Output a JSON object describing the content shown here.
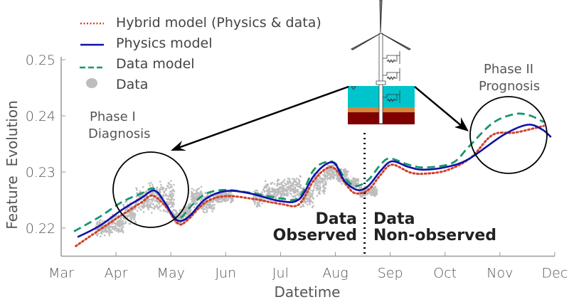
{
  "chart_data": {
    "type": "line",
    "title": "",
    "xlabel": "Datetime",
    "ylabel": "Feature  Evolution",
    "x_ticks": [
      "Mar",
      "Apr",
      "May",
      "Jun",
      "Jul",
      "Aug",
      "Sep",
      "Oct",
      "Nov",
      "Dec"
    ],
    "y_ticks": [
      "0.22",
      "0.23",
      "0.24",
      "0.25"
    ],
    "ylim": [
      0.215,
      0.2505
    ],
    "xlim": [
      "Mar 1",
      "Dec 1"
    ],
    "grid": false,
    "legend_position": "top-left",
    "series": [
      {
        "name": "Hybrid model (Physics & data)",
        "style": "dotted",
        "color": "#d0402a",
        "points": [
          [
            "Mar 9",
            0.2168
          ],
          [
            "Mar 22",
            0.2197
          ],
          [
            "Apr 4",
            0.2223
          ],
          [
            "Apr 15",
            0.2246
          ],
          [
            "Apr 21",
            0.2258
          ],
          [
            "Apr 28",
            0.2239
          ],
          [
            "May 5",
            0.2208
          ],
          [
            "May 10",
            0.2214
          ],
          [
            "May 20",
            0.2246
          ],
          [
            "Jun 1",
            0.2257
          ],
          [
            "Jun 16",
            0.2252
          ],
          [
            "Jul 1",
            0.2243
          ],
          [
            "Jul 11",
            0.2242
          ],
          [
            "Jul 19",
            0.2284
          ],
          [
            "Jul 26",
            0.2306
          ],
          [
            "Aug 1",
            0.2305
          ],
          [
            "Aug 7",
            0.2277
          ],
          [
            "Aug 12",
            0.2262
          ],
          [
            "Aug 19",
            0.2268
          ],
          [
            "Aug 26",
            0.2296
          ],
          [
            "Sep 2",
            0.2313
          ],
          [
            "Sep 12",
            0.2299
          ],
          [
            "Sep 20",
            0.2297
          ],
          [
            "Oct 2",
            0.2303
          ],
          [
            "Oct 15",
            0.2325
          ],
          [
            "Oct 27",
            0.2366
          ],
          [
            "Nov 9",
            0.237
          ],
          [
            "Nov 20",
            0.2378
          ],
          [
            "Nov 25",
            0.2382
          ]
        ]
      },
      {
        "name": "Physics model",
        "style": "solid",
        "color": "#1010a8",
        "points": [
          [
            "Mar 10",
            0.2184
          ],
          [
            "Mar 22",
            0.2204
          ],
          [
            "Apr 4",
            0.2232
          ],
          [
            "Apr 15",
            0.2254
          ],
          [
            "Apr 22",
            0.2267
          ],
          [
            "Apr 28",
            0.2244
          ],
          [
            "May 3",
            0.2218
          ],
          [
            "May 7",
            0.2213
          ],
          [
            "May 12",
            0.2224
          ],
          [
            "May 20",
            0.2252
          ],
          [
            "Jun 1",
            0.2266
          ],
          [
            "Jun 14",
            0.2262
          ],
          [
            "Jul 1",
            0.2248
          ],
          [
            "Jul 11",
            0.2251
          ],
          [
            "Jul 19",
            0.2292
          ],
          [
            "Jul 26",
            0.2314
          ],
          [
            "Aug 1",
            0.2314
          ],
          [
            "Aug 6",
            0.2284
          ],
          [
            "Aug 13",
            0.2268
          ],
          [
            "Aug 19",
            0.2275
          ],
          [
            "Aug 26",
            0.2303
          ],
          [
            "Sep 2",
            0.2319
          ],
          [
            "Sep 11",
            0.2309
          ],
          [
            "Sep 19",
            0.2304
          ],
          [
            "Oct 2",
            0.2309
          ],
          [
            "Oct 14",
            0.2323
          ],
          [
            "Nov 3",
            0.2366
          ],
          [
            "Nov 16",
            0.2384
          ],
          [
            "Nov 24",
            0.2376
          ],
          [
            "Nov 29",
            0.2362
          ]
        ]
      },
      {
        "name": "Data model",
        "style": "dashed",
        "color": "#1a9670",
        "points": [
          [
            "Mar 8",
            0.2194
          ],
          [
            "Mar 22",
            0.222
          ],
          [
            "Apr 4",
            0.2246
          ],
          [
            "Apr 15",
            0.2262
          ],
          [
            "Apr 22",
            0.227
          ],
          [
            "Apr 28",
            0.2242
          ],
          [
            "May 3",
            0.222
          ],
          [
            "May 7",
            0.222
          ],
          [
            "May 12",
            0.2239
          ],
          [
            "May 20",
            0.2261
          ],
          [
            "Jun 1",
            0.2268
          ],
          [
            "Jun 16",
            0.2262
          ],
          [
            "Jul 1",
            0.2253
          ],
          [
            "Jul 11",
            0.2254
          ],
          [
            "Jul 19",
            0.2303
          ],
          [
            "Jul 26",
            0.2318
          ],
          [
            "Aug 1",
            0.2315
          ],
          [
            "Aug 6",
            0.229
          ],
          [
            "Aug 12",
            0.2275
          ],
          [
            "Aug 19",
            0.2286
          ],
          [
            "Aug 26",
            0.2314
          ],
          [
            "Sep 1",
            0.2324
          ],
          [
            "Sep 11",
            0.2313
          ],
          [
            "Sep 20",
            0.2308
          ],
          [
            "Oct 5",
            0.2316
          ],
          [
            "Oct 14",
            0.2345
          ],
          [
            "Oct 27",
            0.2387
          ],
          [
            "Nov 9",
            0.2403
          ],
          [
            "Nov 17",
            0.2401
          ],
          [
            "Nov 25",
            0.2389
          ]
        ]
      },
      {
        "name": "Data",
        "style": "scatter",
        "color": "#bdbdbd",
        "ranges": [
          [
            "Mar 20",
            0.2185,
            0.2215
          ],
          [
            "Mar 28",
            0.219,
            0.2225
          ],
          [
            "Apr 5",
            0.2205,
            0.225
          ],
          [
            "Apr 12",
            0.2225,
            0.2275
          ],
          [
            "Apr 19",
            0.2225,
            0.2285
          ],
          [
            "Apr 26",
            0.222,
            0.2285
          ],
          [
            "May 3",
            0.2205,
            0.2235
          ],
          [
            "May 8",
            0.2215,
            0.2245
          ],
          [
            "May 12",
            0.2235,
            0.2275
          ],
          [
            "May 18",
            0.2225,
            0.2265
          ],
          [
            "May 25",
            0.2245,
            0.2265
          ],
          [
            "Jun 16",
            0.2235,
            0.227
          ],
          [
            "Jun 22",
            0.224,
            0.2285
          ],
          [
            "Jun 29",
            0.2245,
            0.229
          ],
          [
            "Jul 5",
            0.225,
            0.2295
          ],
          [
            "Jul 12",
            0.2235,
            0.2275
          ],
          [
            "Jul 19",
            0.2255,
            0.2305
          ],
          [
            "Jul 26",
            0.2285,
            0.2315
          ],
          [
            "Aug 2",
            0.2275,
            0.231
          ],
          [
            "Aug 8",
            0.227,
            0.229
          ],
          [
            "Aug 14",
            0.2255,
            0.2275
          ],
          [
            "Aug 20",
            0.2255,
            0.2275
          ]
        ]
      }
    ],
    "annotations": {
      "phase1": [
        "Phase I",
        "Diagnosis"
      ],
      "phase2": [
        "Phase II",
        "Prognosis"
      ],
      "observed": [
        "Data",
        "Observed"
      ],
      "non_observed": [
        "Data",
        "Non-observed"
      ],
      "split_date": "Aug 17"
    }
  },
  "colors": {
    "water": "#00c4cc",
    "sand": "#d4863c",
    "soil": "#7f0000"
  }
}
